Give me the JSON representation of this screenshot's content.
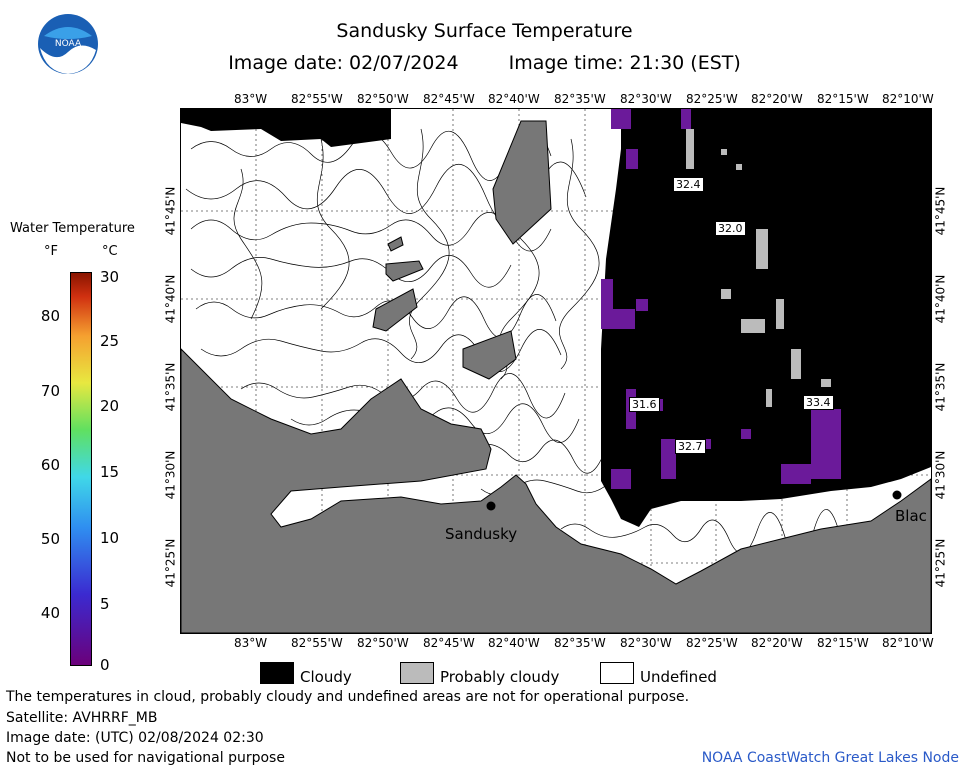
{
  "header": {
    "title": "Sandusky Surface Temperature",
    "image_date": "Image date: 02/07/2024",
    "image_time": "Image time: 21:30 (EST)"
  },
  "logo": {
    "text": "NOAA"
  },
  "longitude_ticks": [
    "83°W",
    "82°55'W",
    "82°50'W",
    "82°45'W",
    "82°40'W",
    "82°35'W",
    "82°30'W",
    "82°25'W",
    "82°20'W",
    "82°15'W",
    "82°10'W"
  ],
  "latitude_ticks": [
    "41°45'N",
    "41°40'N",
    "41°35'N",
    "41°30'N",
    "41°25'N"
  ],
  "map": {
    "place_labels": [
      "Sandusky",
      "Blac"
    ],
    "temperature_labels": [
      "32.4",
      "32.0",
      "31.6",
      "32.7",
      "33.4"
    ],
    "colors": {
      "land": "#777777",
      "cloud": "#000000",
      "probably_cloudy": "#bbbbbb",
      "undefined": "#ffffff",
      "purple": "#6b1a9a"
    }
  },
  "color_scale": {
    "title": "Water Temperature",
    "unit_f": "°F",
    "unit_c": "°C",
    "f_ticks": [
      "80",
      "70",
      "60",
      "50",
      "40"
    ],
    "c_ticks": [
      "30",
      "25",
      "20",
      "15",
      "10",
      "5",
      "0"
    ]
  },
  "legend": {
    "cloudy": "Cloudy",
    "probably_cloudy": "Probably cloudy",
    "undefined": "Undefined"
  },
  "footer": {
    "note": "The temperatures in cloud, probably cloudy and undefined areas are not for operational purpose.",
    "satellite": "Satellite: AVHRRF_MB",
    "utc_date": "Image date: (UTC) 02/08/2024  02:30",
    "nav_warning": "Not to be used for navigational purpose",
    "credit": "NOAA CoastWatch Great Lakes Node"
  }
}
